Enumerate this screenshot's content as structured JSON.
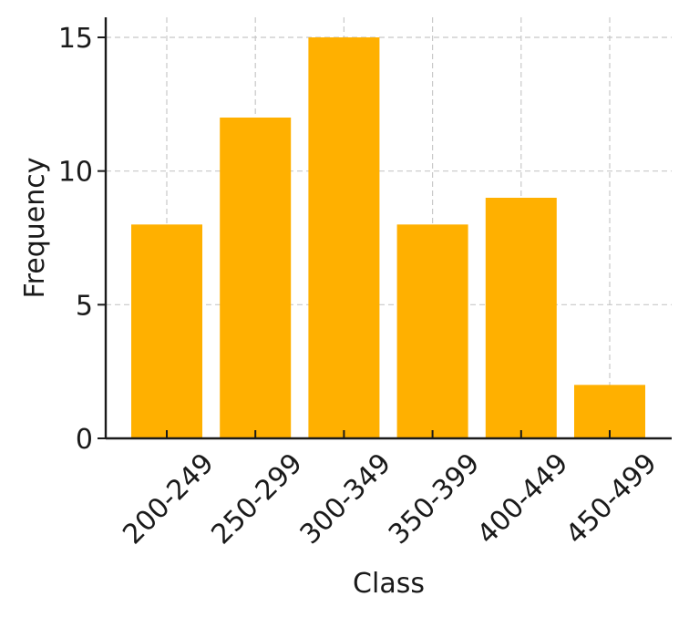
{
  "chart_data": {
    "type": "bar",
    "categories": [
      "200-249",
      "250-299",
      "300-349",
      "350-399",
      "400-449",
      "450-499"
    ],
    "values": [
      8,
      12,
      15,
      8,
      9,
      2
    ],
    "title": "",
    "xlabel": "Class",
    "ylabel": "Frequency",
    "ylim": [
      0,
      15.75
    ],
    "yticks": [
      0,
      5,
      10,
      15
    ],
    "grid": true,
    "bar_color": "#FFB000"
  }
}
